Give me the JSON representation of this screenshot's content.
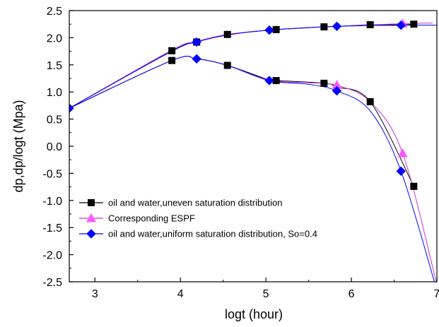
{
  "chart_data": {
    "type": "line",
    "title": "",
    "xlabel": "logt (hour)",
    "ylabel": "dp,dp/logt (Mpa)",
    "xlim": [
      2.7,
      7.0
    ],
    "ylim": [
      -2.5,
      2.5
    ],
    "xticks": [
      3,
      4,
      5,
      6,
      7
    ],
    "yticks": [
      -2.5,
      -2.0,
      -1.5,
      -1.0,
      -0.5,
      0.0,
      0.5,
      1.0,
      1.5,
      2.0,
      2.5
    ],
    "ytick_labels": [
      "-2.5",
      "-2.0",
      "-1.5",
      "-1.0",
      "-0.5",
      "0.0",
      "0.5",
      "1.0",
      "1.5",
      "2.0",
      "2.5"
    ],
    "grid": false,
    "legend_position": "lower-left",
    "series": [
      {
        "name": "oil and water,uneven saturation  distribution",
        "color": "#000000",
        "marker": "square",
        "line_color": "#000000",
        "curves": [
          {
            "x": [
              2.7,
              3.9,
              4.19,
              4.55,
              5.04,
              5.12,
              5.68,
              5.83,
              6.22,
              6.6,
              6.73
            ],
            "y": [
              0.7,
              1.76,
              1.92,
              2.06,
              2.14,
              2.15,
              2.2,
              2.21,
              2.24,
              2.24,
              2.25
            ]
          },
          {
            "x": [
              2.7,
              3.9,
              4.19,
              4.55,
              5.04,
              5.12,
              5.68,
              5.83,
              6.22,
              6.73
            ],
            "y": [
              0.7,
              1.58,
              1.61,
              1.49,
              1.22,
              1.21,
              1.16,
              1.09,
              0.82,
              -0.74
            ]
          }
        ],
        "marker_points": {
          "x": [
            3.9,
            4.19,
            4.55,
            5.12,
            5.68,
            6.22,
            6.73,
            3.9,
            4.55,
            5.12,
            5.68,
            6.22,
            6.73
          ],
          "y": [
            1.76,
            1.92,
            2.06,
            2.15,
            2.2,
            2.24,
            2.25,
            1.58,
            1.49,
            1.21,
            1.16,
            0.82,
            -0.74
          ]
        }
      },
      {
        "name": "Corresponding ESPF",
        "color": "#ff55ff",
        "marker": "triangle",
        "line_color": "#cc33cc",
        "curves": [
          {
            "x": [
              2.7,
              3.9,
              4.19,
              4.55,
              5.04,
              5.83,
              6.6,
              6.95
            ],
            "y": [
              0.7,
              1.77,
              1.93,
              2.06,
              2.14,
              2.21,
              2.26,
              2.27
            ]
          },
          {
            "x": [
              2.7,
              3.9,
              4.19,
              4.55,
              5.04,
              5.5,
              5.83,
              6.22,
              6.6,
              7.0
            ],
            "y": [
              0.7,
              1.58,
              1.61,
              1.49,
              1.22,
              1.17,
              1.12,
              0.82,
              -0.13,
              -2.55
            ]
          }
        ],
        "marker_points": {
          "x": [
            6.6,
            5.83,
            6.6
          ],
          "y": [
            2.26,
            1.13,
            -0.13
          ]
        }
      },
      {
        "name": "oil and water,uniform saturation distribution, So=0.4",
        "color": "#0000ff",
        "marker": "diamond",
        "line_color": "#0000ff",
        "curves": [
          {
            "x": [
              2.7,
              3.9,
              4.19,
              4.55,
              5.04,
              5.83,
              6.58,
              7.0
            ],
            "y": [
              0.7,
              1.75,
              1.92,
              2.05,
              2.14,
              2.21,
              2.23,
              2.23
            ]
          },
          {
            "x": [
              2.7,
              3.9,
              4.19,
              4.55,
              5.04,
              5.5,
              5.83,
              6.22,
              6.58,
              6.98
            ],
            "y": [
              0.7,
              1.58,
              1.61,
              1.49,
              1.21,
              1.14,
              1.02,
              0.65,
              -0.46,
              -2.55
            ]
          }
        ],
        "marker_points": {
          "x": [
            2.7,
            4.19,
            5.04,
            5.83,
            6.58,
            4.19,
            5.04,
            5.83,
            6.58
          ],
          "y": [
            0.7,
            1.92,
            2.14,
            2.21,
            2.23,
            1.61,
            1.21,
            1.02,
            -0.46
          ]
        }
      }
    ]
  }
}
